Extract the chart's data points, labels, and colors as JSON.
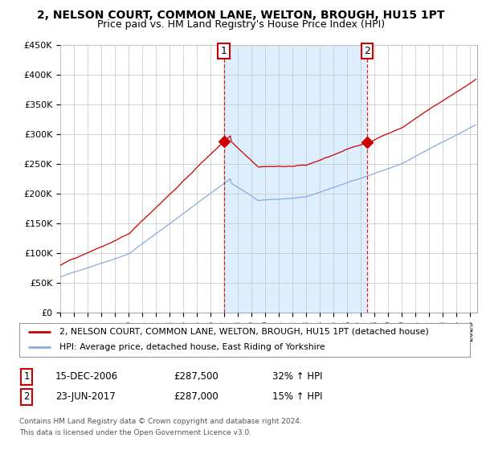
{
  "title": "2, NELSON COURT, COMMON LANE, WELTON, BROUGH, HU15 1PT",
  "subtitle": "Price paid vs. HM Land Registry's House Price Index (HPI)",
  "ylabel_ticks": [
    "£0",
    "£50K",
    "£100K",
    "£150K",
    "£200K",
    "£250K",
    "£300K",
    "£350K",
    "£400K",
    "£450K"
  ],
  "ylim": [
    0,
    450000
  ],
  "xlim_start": 1995.0,
  "xlim_end": 2025.5,
  "sale1_x": 2006.96,
  "sale1_y": 287500,
  "sale1_label": "1",
  "sale2_x": 2017.47,
  "sale2_y": 287000,
  "sale2_label": "2",
  "sale_color": "#cc0000",
  "hpi_color": "#88aadd",
  "shade_color": "#ddeeff",
  "legend_label1": "2, NELSON COURT, COMMON LANE, WELTON, BROUGH, HU15 1PT (detached house)",
  "legend_label2": "HPI: Average price, detached house, East Riding of Yorkshire",
  "footer1": "Contains HM Land Registry data © Crown copyright and database right 2024.",
  "footer2": "This data is licensed under the Open Government Licence v3.0.",
  "table_row1_num": "1",
  "table_row1_date": "15-DEC-2006",
  "table_row1_price": "£287,500",
  "table_row1_hpi": "32% ↑ HPI",
  "table_row2_num": "2",
  "table_row2_date": "23-JUN-2017",
  "table_row2_price": "£287,000",
  "table_row2_hpi": "15% ↑ HPI",
  "background_color": "#ffffff",
  "grid_color": "#cccccc",
  "title_fontsize": 10,
  "subtitle_fontsize": 9
}
